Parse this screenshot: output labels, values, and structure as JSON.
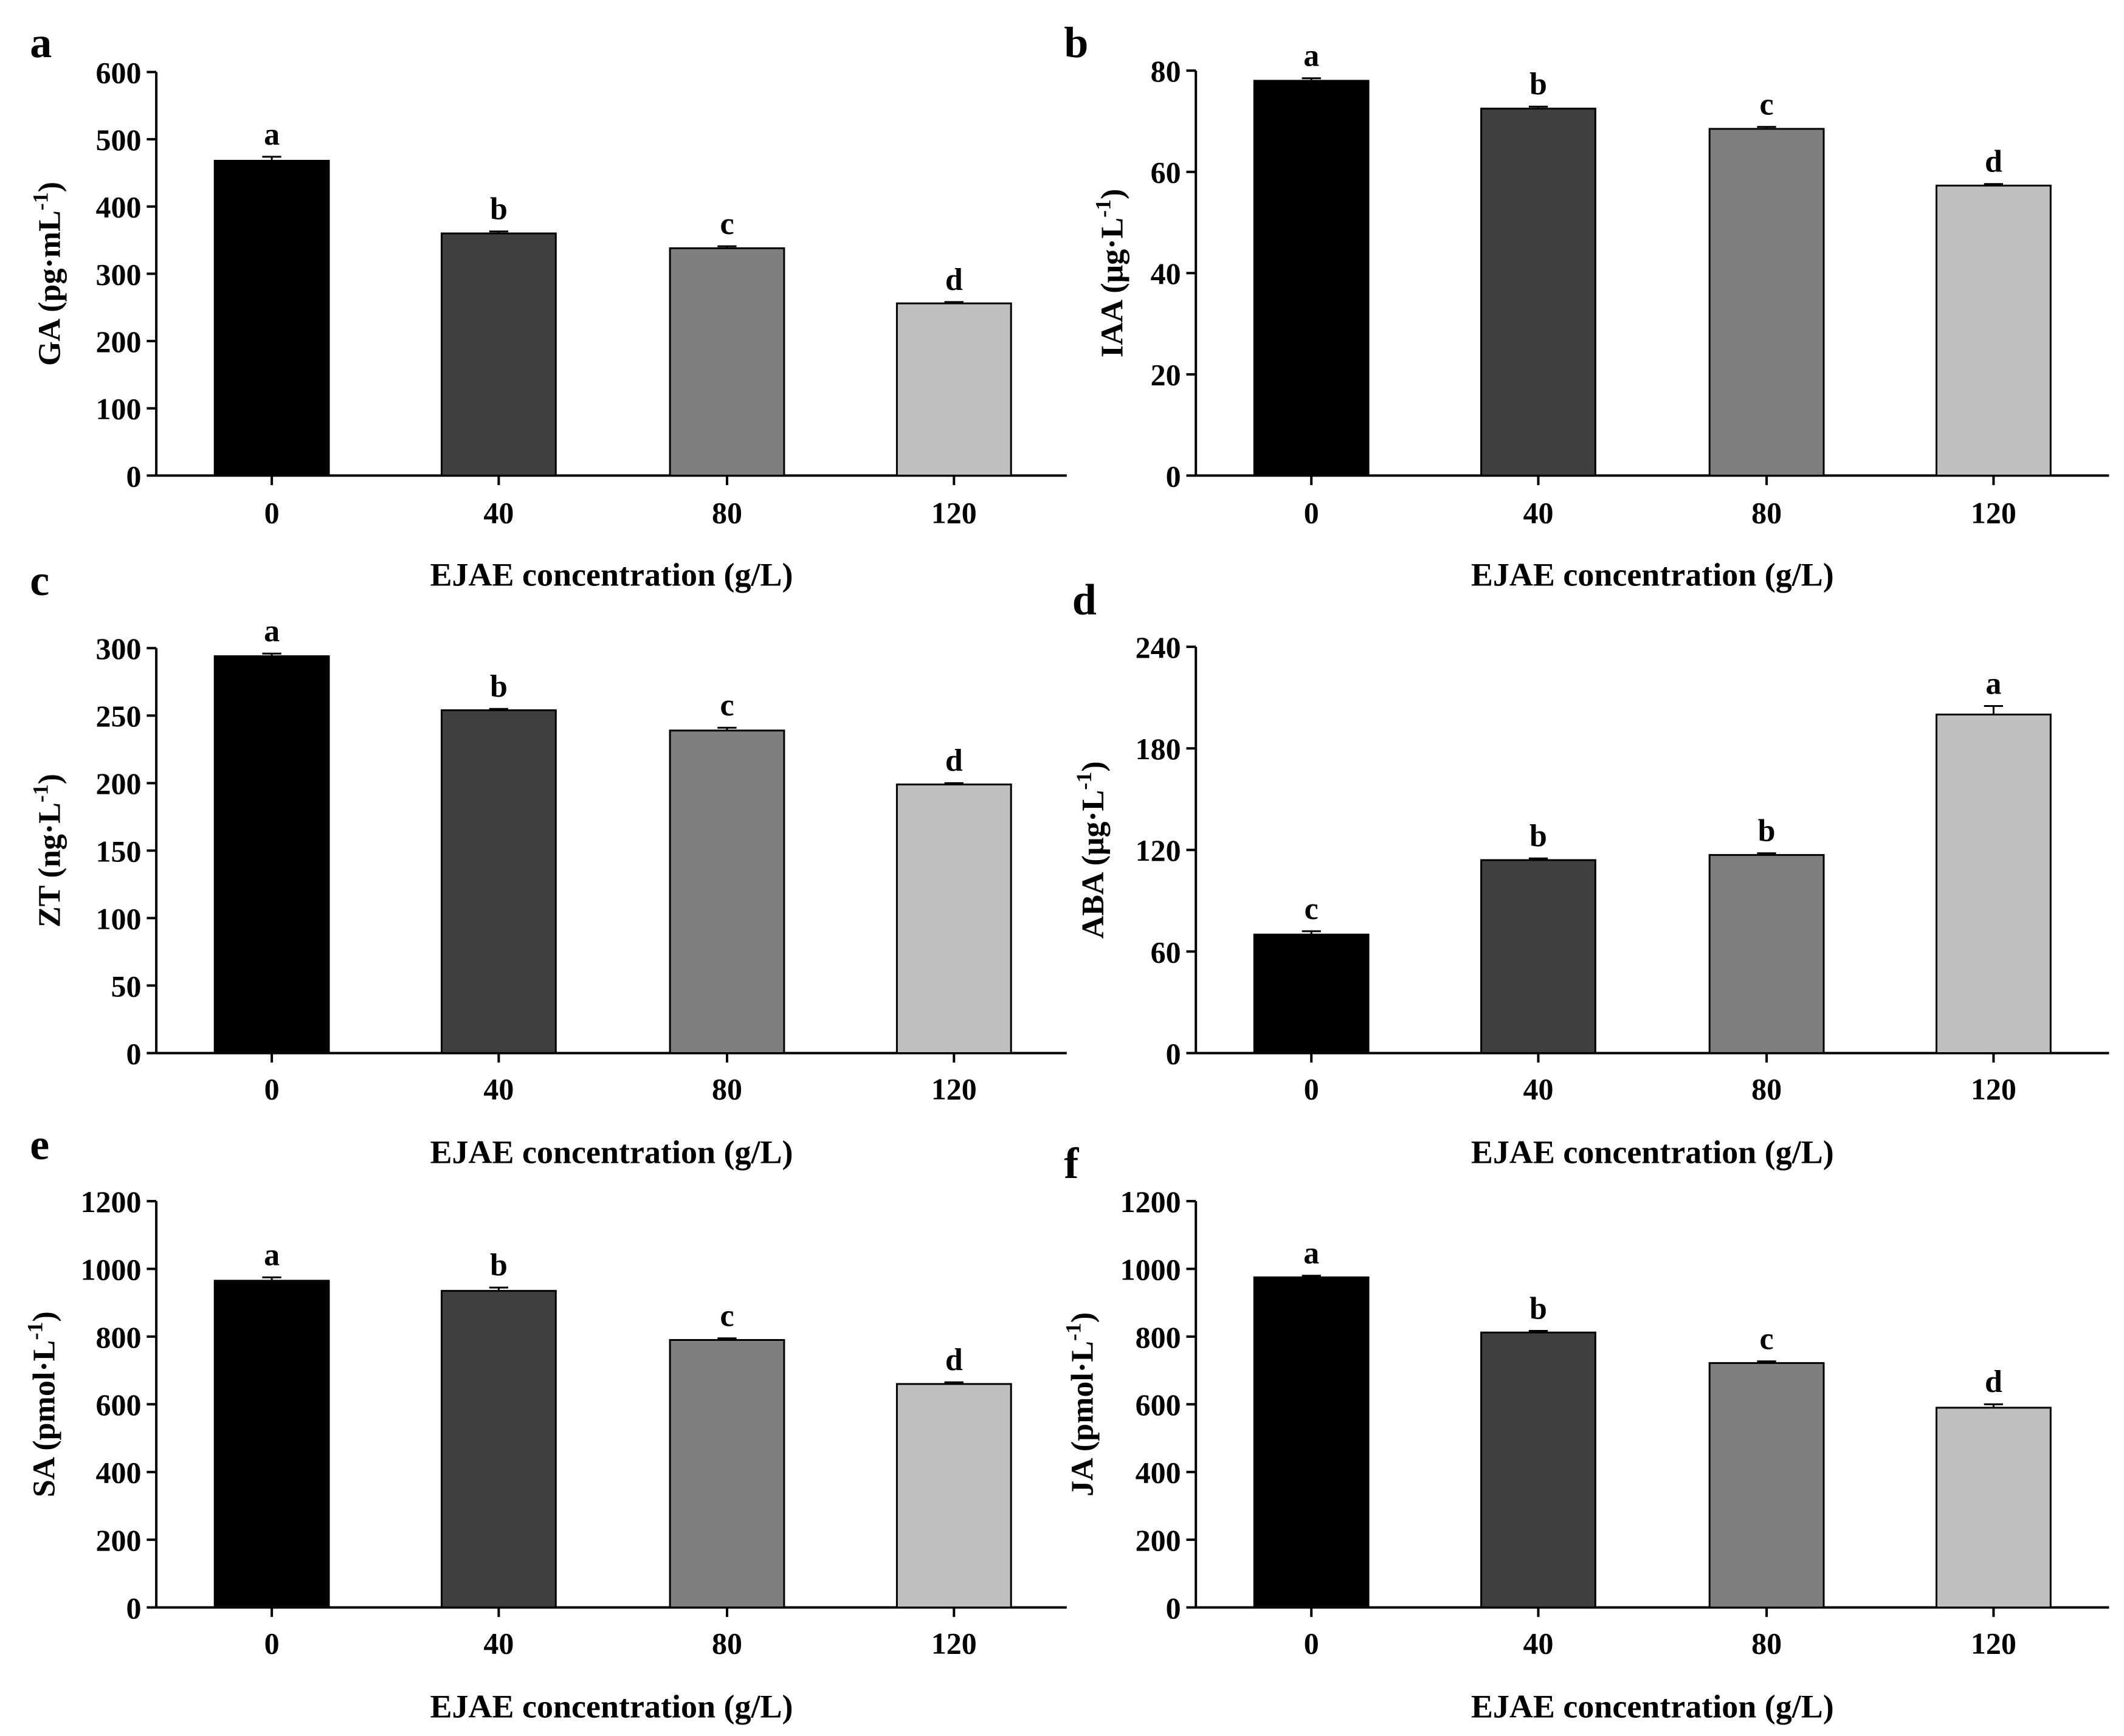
{
  "chart_data": [
    {
      "type": "bar",
      "panel": "a",
      "categories": [
        "0",
        "40",
        "80",
        "120"
      ],
      "values": [
        468,
        360,
        338,
        256
      ],
      "errors": [
        6,
        3,
        3,
        2
      ],
      "significance": [
        "a",
        "b",
        "c",
        "d"
      ],
      "xlabel": "EJAE concentration (g/L)",
      "ylabel_main": "GA (pg·mL",
      "ylabel_sup": "-1",
      "ylabel_end": ")",
      "ylim": [
        0,
        600
      ],
      "yticks": [
        "0",
        "100",
        "200",
        "300",
        "400",
        "500",
        "600"
      ]
    },
    {
      "type": "bar",
      "panel": "b",
      "categories": [
        "0",
        "40",
        "80",
        "120"
      ],
      "values": [
        78,
        72.5,
        68.5,
        57.3
      ],
      "errors": [
        0.5,
        0.4,
        0.4,
        0.3
      ],
      "significance": [
        "a",
        "b",
        "c",
        "d"
      ],
      "xlabel": "EJAE concentration (g/L)",
      "ylabel_main": "IAA (μg·L",
      "ylabel_sup": "-1",
      "ylabel_end": ")",
      "ylim": [
        0,
        80
      ],
      "yticks": [
        "0",
        "20",
        "40",
        "60",
        "80"
      ]
    },
    {
      "type": "bar",
      "panel": "c",
      "categories": [
        "0",
        "40",
        "80",
        "120"
      ],
      "values": [
        294,
        254,
        239,
        199
      ],
      "errors": [
        2,
        1,
        2,
        1
      ],
      "significance": [
        "a",
        "b",
        "c",
        "d"
      ],
      "xlabel": "EJAE concentration (g/L)",
      "ylabel_main": "ZT (ng·L",
      "ylabel_sup": "-1",
      "ylabel_end": ")",
      "ylim": [
        0,
        300
      ],
      "yticks": [
        "0",
        "50",
        "100",
        "150",
        "200",
        "250",
        "300"
      ]
    },
    {
      "type": "bar",
      "panel": "d",
      "categories": [
        "0",
        "40",
        "80",
        "120"
      ],
      "values": [
        70,
        114,
        117,
        200
      ],
      "errors": [
        2,
        1,
        1,
        5
      ],
      "significance": [
        "c",
        "b",
        "b",
        "a"
      ],
      "xlabel": "EJAE concentration (g/L)",
      "ylabel_main": "ABA (μg·L",
      "ylabel_sup": "-1",
      "ylabel_end": ")",
      "ylim": [
        0,
        240
      ],
      "yticks": [
        "0",
        "60",
        "120",
        "180",
        "240"
      ]
    },
    {
      "type": "bar",
      "panel": "e",
      "categories": [
        "0",
        "40",
        "80",
        "120"
      ],
      "values": [
        965,
        935,
        790,
        660
      ],
      "errors": [
        10,
        10,
        5,
        5
      ],
      "significance": [
        "a",
        "b",
        "c",
        "d"
      ],
      "xlabel": "EJAE concentration (g/L)",
      "ylabel_main": "SA (pmol·L",
      "ylabel_sup": "-1",
      "ylabel_end": ")",
      "ylim": [
        0,
        1200
      ],
      "yticks": [
        "0",
        "200",
        "400",
        "600",
        "800",
        "1000",
        "1200"
      ]
    },
    {
      "type": "bar",
      "panel": "f",
      "categories": [
        "0",
        "40",
        "80",
        "120"
      ],
      "values": [
        975,
        812,
        722,
        590
      ],
      "errors": [
        5,
        5,
        5,
        10
      ],
      "significance": [
        "a",
        "b",
        "c",
        "d"
      ],
      "xlabel": "EJAE concentration (g/L)",
      "ylabel_main": "JA (pmol·L",
      "ylabel_sup": "-1",
      "ylabel_end": ")",
      "ylim": [
        0,
        1200
      ],
      "yticks": [
        "0",
        "200",
        "400",
        "600",
        "800",
        "1000",
        "1200"
      ]
    }
  ],
  "colors": {
    "bars": [
      "#000000",
      "#3f3f3f",
      "#7f7f7f",
      "#c0c0c0"
    ],
    "axis": "#000000"
  }
}
